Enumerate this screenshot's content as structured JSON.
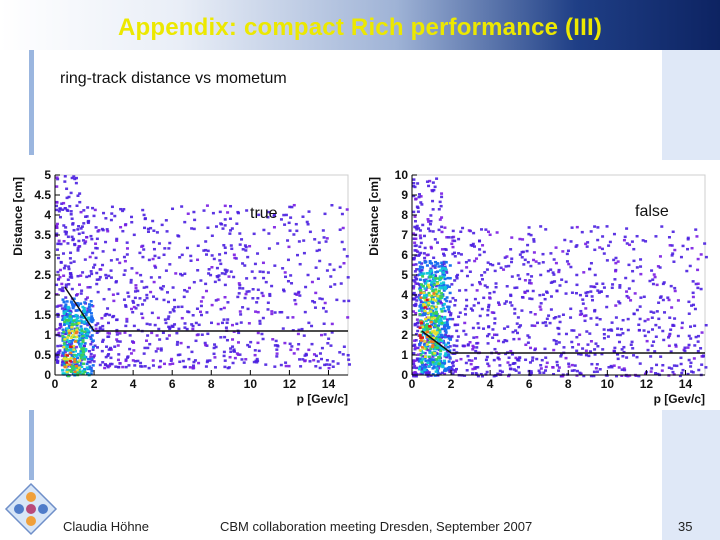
{
  "slide": {
    "title": "Appendix: compact Rich performance (III)",
    "subtitle": "ring-track distance vs mometum"
  },
  "footer": {
    "author": "Claudia Höhne",
    "meeting": "CBM collaboration meeting Dresden, September 2007",
    "page": "35"
  },
  "colors": {
    "title_text": "#ece800",
    "title_bar_end": "#0d2362",
    "dot": "#4a1fe0",
    "line": "#111111"
  },
  "chart_data": [
    {
      "type": "heatmap",
      "label": "true",
      "xlabel": "p [Gev/c]",
      "ylabel": "Distance [cm]",
      "xlim": [
        0,
        15
      ],
      "ylim": [
        0,
        5
      ],
      "xticks": [
        "0",
        "2",
        "4",
        "6",
        "8",
        "10",
        "12",
        "14"
      ],
      "yticks": [
        "0",
        "0.5",
        "1",
        "1.5",
        "2",
        "2.5",
        "3",
        "3.5",
        "4",
        "4.5",
        "5"
      ],
      "cut_line": {
        "x": [
          0.5,
          2.0,
          15.0
        ],
        "y": [
          2.2,
          1.1,
          1.1
        ]
      },
      "hotspot": {
        "x": 0.7,
        "y": 0.4
      }
    },
    {
      "type": "heatmap",
      "label": "false",
      "xlabel": "p [Gev/c]",
      "ylabel": "Distance [cm]",
      "xlim": [
        0,
        15
      ],
      "ylim": [
        0,
        10
      ],
      "xticks": [
        "0",
        "2",
        "4",
        "6",
        "8",
        "10",
        "12",
        "14"
      ],
      "yticks": [
        "0",
        "1",
        "2",
        "3",
        "4",
        "5",
        "6",
        "7",
        "8",
        "9",
        "10"
      ],
      "cut_line": {
        "x": [
          0.5,
          2.0,
          15.0
        ],
        "y": [
          2.2,
          1.1,
          1.1
        ]
      },
      "hotspot": {
        "x": 0.9,
        "y": 2.8
      }
    }
  ]
}
